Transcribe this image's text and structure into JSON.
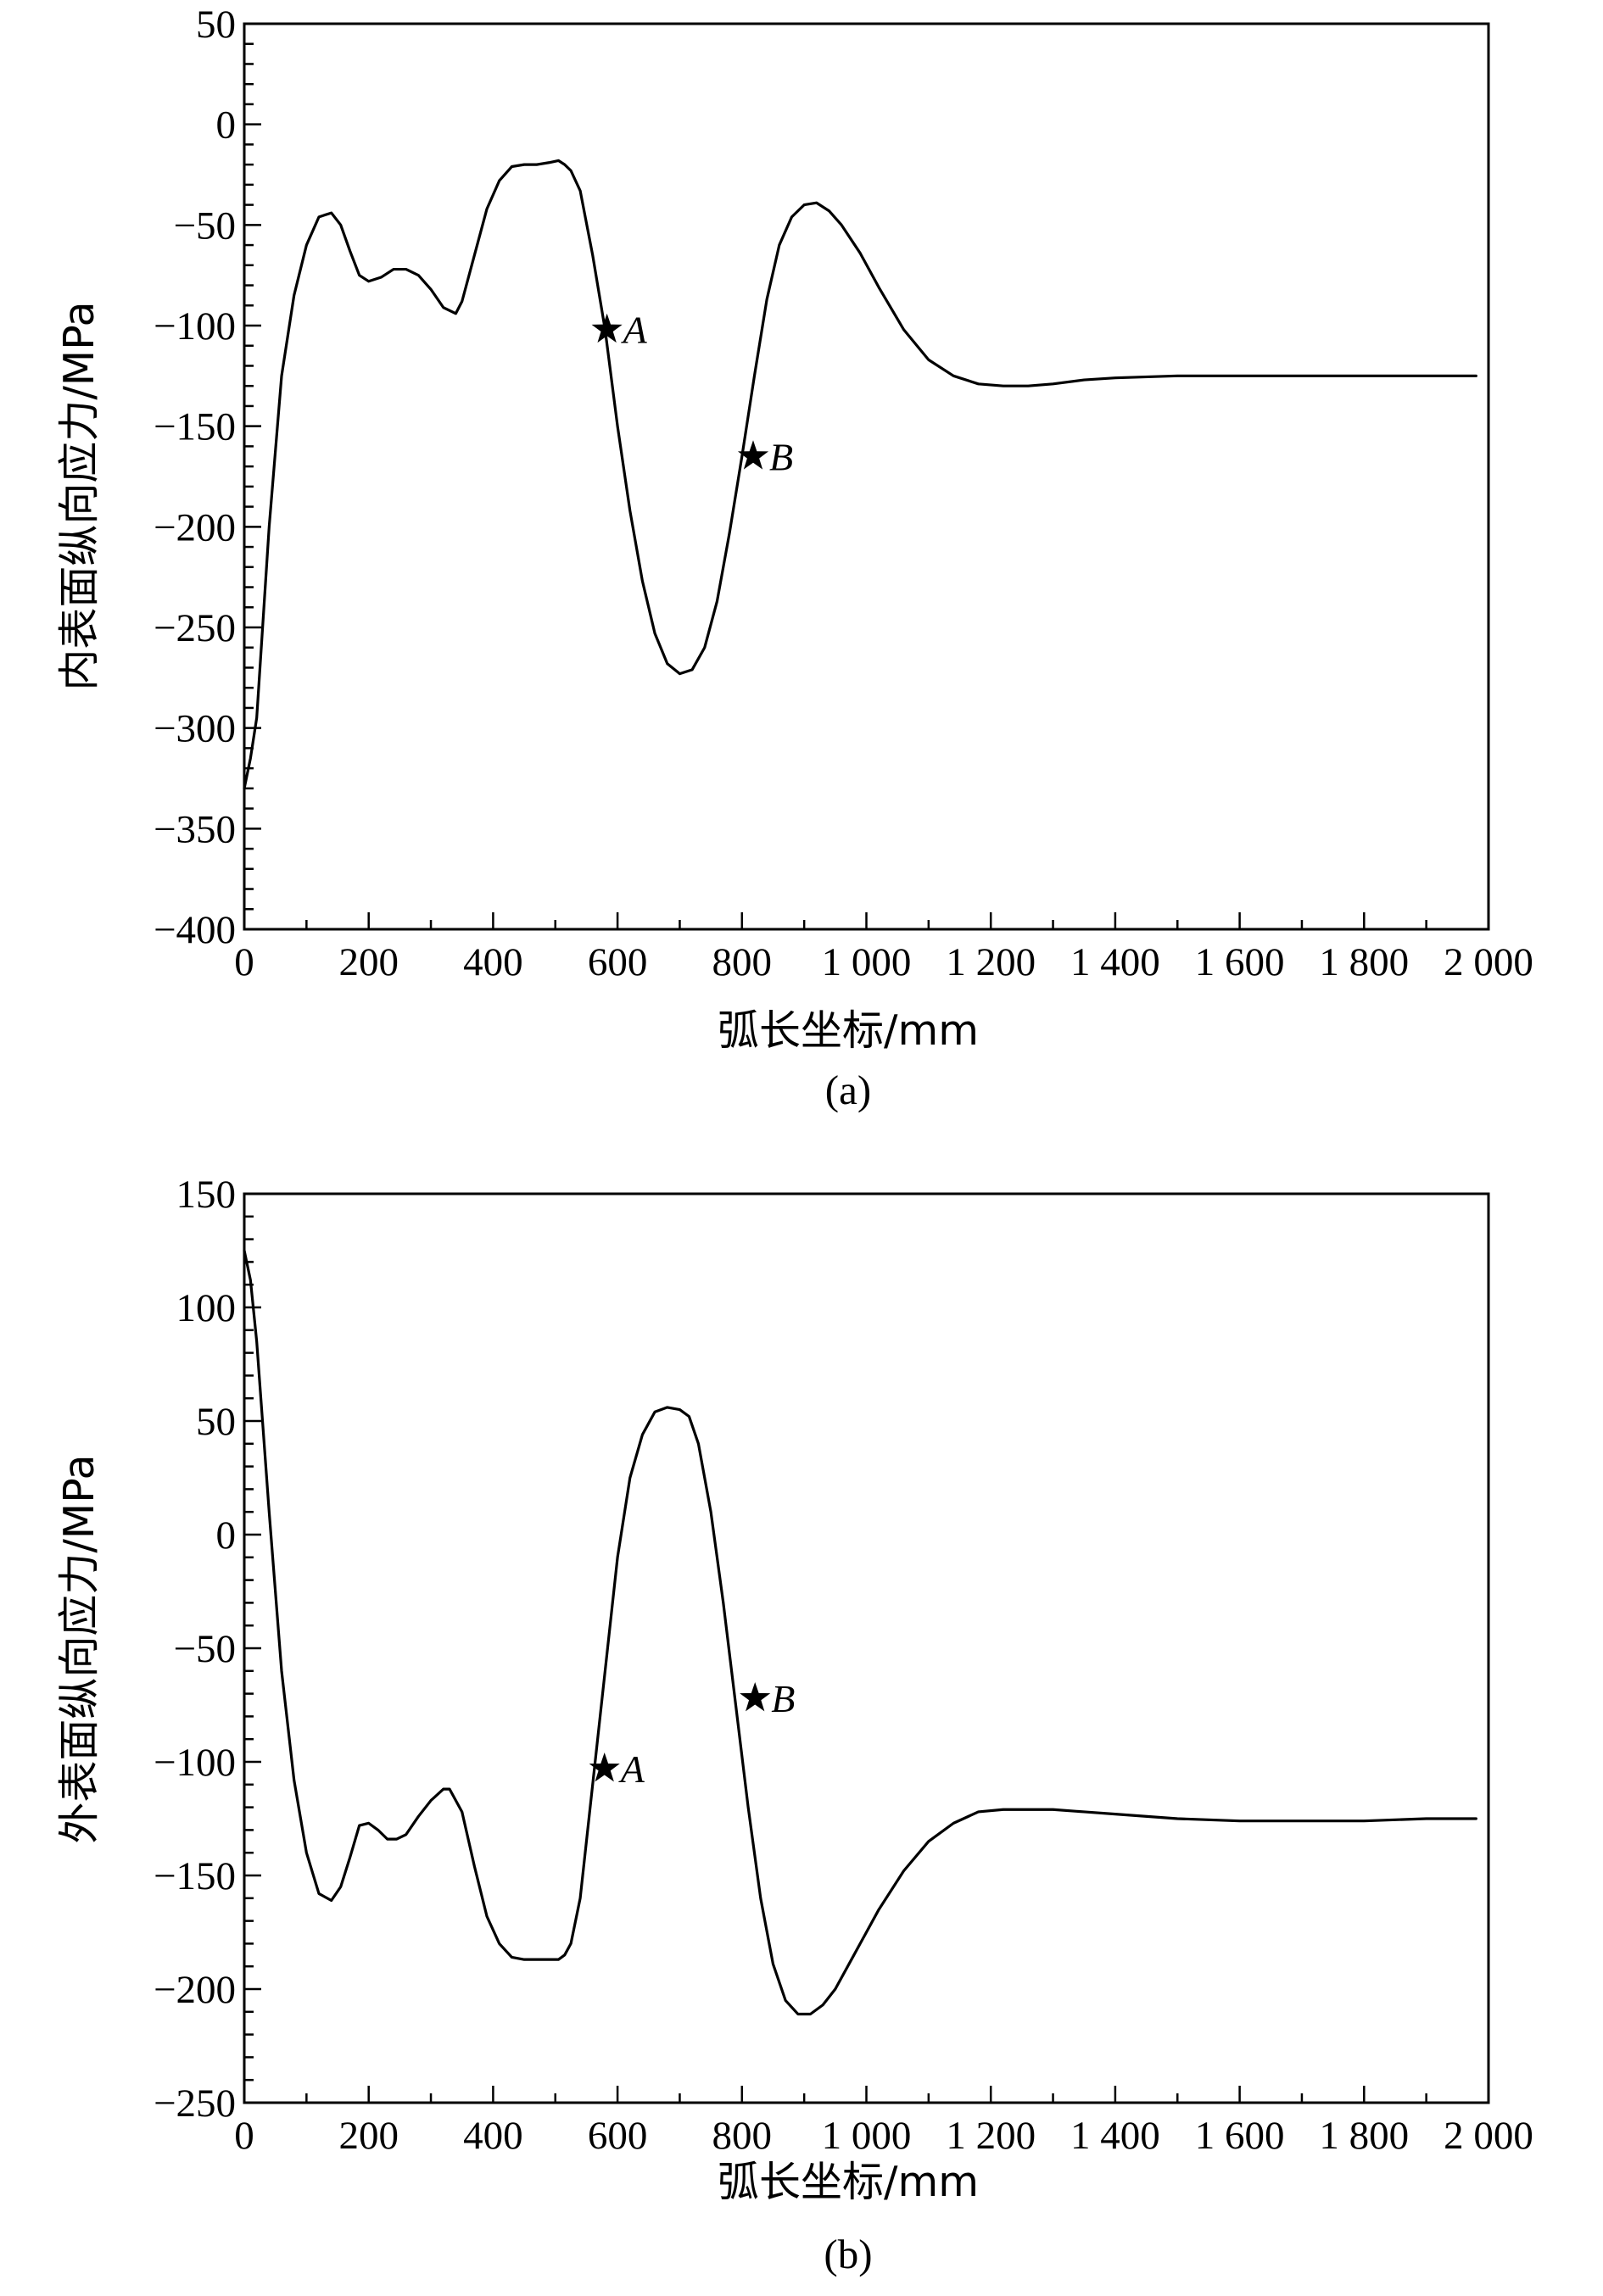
{
  "chart_data": [
    {
      "type": "line",
      "caption": "(a)",
      "xlabel": "弧长坐标/mm",
      "ylabel": "内表面纵向应力/MPa",
      "xlim": [
        0,
        2000
      ],
      "ylim": [
        -400,
        50
      ],
      "x_ticks": [
        0,
        200,
        400,
        600,
        800,
        1000,
        1200,
        1400,
        1600,
        1800,
        2000
      ],
      "x_tick_labels": [
        "0",
        "200",
        "400",
        "600",
        "800",
        "1 000",
        "1 200",
        "1 400",
        "1 600",
        "1 800",
        "2 000"
      ],
      "y_ticks": [
        50,
        0,
        -50,
        -100,
        -150,
        -200,
        -250,
        -300,
        -350,
        -400
      ],
      "y_tick_labels": [
        "50",
        "0",
        "−50",
        "−100",
        "−150",
        "−200",
        "−250",
        "−300",
        "−350",
        "−400"
      ],
      "series": [
        {
          "name": "inner",
          "x": [
            0,
            10,
            20,
            40,
            60,
            80,
            100,
            120,
            140,
            155,
            170,
            185,
            200,
            220,
            240,
            260,
            280,
            300,
            320,
            340,
            350,
            370,
            390,
            410,
            430,
            450,
            470,
            490,
            505,
            515,
            525,
            540,
            560,
            580,
            600,
            620,
            640,
            660,
            680,
            700,
            720,
            740,
            760,
            780,
            800,
            820,
            840,
            860,
            880,
            900,
            920,
            940,
            960,
            990,
            1020,
            1060,
            1100,
            1140,
            1180,
            1220,
            1260,
            1300,
            1350,
            1400,
            1500,
            1600,
            1700,
            1800,
            1900,
            1980
          ],
          "y": [
            -330,
            -315,
            -295,
            -200,
            -125,
            -85,
            -60,
            -46,
            -44,
            -50,
            -63,
            -75,
            -78,
            -76,
            -72,
            -72,
            -75,
            -82,
            -91,
            -94,
            -88,
            -65,
            -42,
            -28,
            -21,
            -20,
            -20,
            -19,
            -18,
            -20,
            -23,
            -33,
            -65,
            -102,
            -150,
            -192,
            -227,
            -253,
            -268,
            -273,
            -271,
            -260,
            -237,
            -203,
            -165,
            -125,
            -87,
            -60,
            -46,
            -40,
            -39,
            -43,
            -50,
            -64,
            -81,
            -102,
            -117,
            -125,
            -129,
            -130,
            -130,
            -129,
            -127,
            -126,
            -125,
            -125,
            -125,
            -125,
            -125,
            -125
          ]
        }
      ],
      "markers": [
        {
          "label": "A",
          "x": 583,
          "y": -102
        },
        {
          "label": "B",
          "x": 818,
          "y": -165
        }
      ]
    },
    {
      "type": "line",
      "caption": "(b)",
      "xlabel": "弧长坐标/mm",
      "ylabel": "外表面纵向应力/MPa",
      "xlim": [
        0,
        2000
      ],
      "ylim": [
        -250,
        150
      ],
      "x_ticks": [
        0,
        200,
        400,
        600,
        800,
        1000,
        1200,
        1400,
        1600,
        1800,
        2000
      ],
      "x_tick_labels": [
        "0",
        "200",
        "400",
        "600",
        "800",
        "1 000",
        "1 200",
        "1 400",
        "1 600",
        "1 800",
        "2 000"
      ],
      "y_ticks": [
        150,
        100,
        50,
        0,
        -50,
        -100,
        -150,
        -200,
        -250
      ],
      "y_tick_labels": [
        "150",
        "100",
        "50",
        "0",
        "−50",
        "−100",
        "−150",
        "−200",
        "−250"
      ],
      "series": [
        {
          "name": "outer",
          "x": [
            0,
            10,
            20,
            40,
            60,
            80,
            100,
            120,
            140,
            155,
            170,
            185,
            200,
            215,
            230,
            245,
            260,
            280,
            300,
            320,
            330,
            350,
            370,
            390,
            410,
            430,
            450,
            470,
            490,
            505,
            515,
            525,
            540,
            560,
            580,
            600,
            620,
            640,
            660,
            680,
            700,
            715,
            730,
            750,
            770,
            790,
            810,
            830,
            850,
            870,
            890,
            910,
            930,
            950,
            980,
            1020,
            1060,
            1100,
            1140,
            1180,
            1220,
            1260,
            1300,
            1350,
            1400,
            1500,
            1600,
            1700,
            1800,
            1900,
            1980
          ],
          "y": [
            125,
            112,
            85,
            10,
            -60,
            -108,
            -140,
            -158,
            -161,
            -155,
            -142,
            -128,
            -127,
            -130,
            -134,
            -134,
            -132,
            -124,
            -117,
            -112,
            -112,
            -122,
            -146,
            -168,
            -180,
            -186,
            -187,
            -187,
            -187,
            -187,
            -185,
            -180,
            -160,
            -110,
            -60,
            -10,
            25,
            44,
            54,
            56,
            55,
            52,
            40,
            10,
            -30,
            -75,
            -120,
            -160,
            -189,
            -205,
            -211,
            -211,
            -207,
            -200,
            -185,
            -165,
            -148,
            -135,
            -127,
            -122,
            -121,
            -121,
            -121,
            -122,
            -123,
            -125,
            -126,
            -126,
            -126,
            -125,
            -125
          ]
        }
      ],
      "markers": [
        {
          "label": "A",
          "x": 579,
          "y": -103
        },
        {
          "label": "B",
          "x": 821,
          "y": -72
        }
      ]
    }
  ]
}
